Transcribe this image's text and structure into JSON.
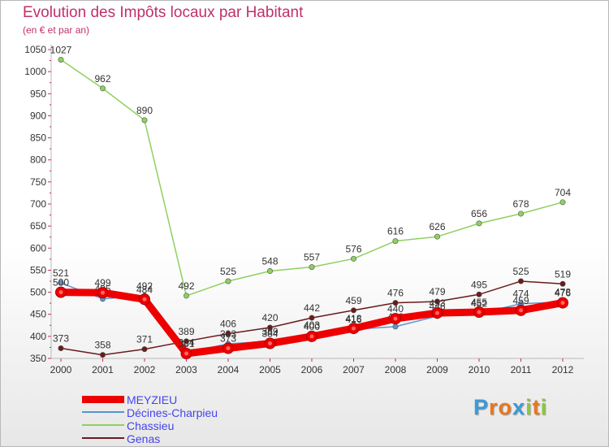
{
  "chart_data": {
    "type": "line",
    "title": "Evolution des Impôts locaux par Habitant",
    "subtitle": "(en € et par an)",
    "xlabel": "",
    "ylabel": "",
    "ylim": [
      350,
      1050
    ],
    "yticks": [
      350,
      400,
      450,
      500,
      550,
      600,
      650,
      700,
      750,
      800,
      850,
      900,
      950,
      1000,
      1050
    ],
    "x": [
      "2000",
      "2001",
      "2002",
      "2003",
      "2004",
      "2005",
      "2006",
      "2007",
      "2008",
      "2009",
      "2010",
      "2011",
      "2012"
    ],
    "grid": false,
    "series": [
      {
        "name": "Genas",
        "color": "#6b1a1a",
        "width": 1.5,
        "values": [
          373,
          358,
          371,
          389,
          406,
          420,
          442,
          459,
          476,
          479,
          495,
          525,
          519
        ],
        "labels": [
          "373",
          "358",
          "371",
          "389",
          "406",
          "420",
          "442",
          "459",
          "476",
          "479",
          "495",
          "525",
          "519"
        ]
      },
      {
        "name": "Chassieu",
        "color": "#8fd060",
        "width": 1.5,
        "values": [
          1027,
          962,
          890,
          492,
          525,
          548,
          557,
          576,
          616,
          626,
          656,
          678,
          704
        ],
        "labels": [
          "1027",
          "962",
          "890",
          "492",
          "525",
          "548",
          "557",
          "576",
          "616",
          "626",
          "656",
          "678",
          "704"
        ]
      },
      {
        "name": "Décines-Charpieu",
        "color": "#5c93cd",
        "width": 1.5,
        "values": [
          521,
          485,
          492,
          364,
          383,
          389,
          403,
          416,
          422,
          446,
          452,
          474,
          478
        ],
        "labels": [
          "521",
          "485",
          "492",
          "364",
          "383",
          "389",
          "403",
          "416",
          "422",
          "446",
          "452",
          "474",
          "478"
        ]
      },
      {
        "name": "MEYZIEU",
        "color": "#ee0000",
        "width": 9,
        "values": [
          500,
          499,
          484,
          361,
          373,
          384,
          400,
          418,
          440,
          453,
          455,
          459,
          476
        ],
        "labels": [
          "500",
          "499",
          "484",
          "361",
          "373",
          "384",
          "400",
          "418",
          "440",
          "453",
          "455",
          "459",
          "476"
        ]
      }
    ],
    "legend": [
      "MEYZIEU",
      "Décines-Charpieu",
      "Chassieu",
      "Genas"
    ],
    "legend_position": "bottom-left"
  },
  "legend_items": [
    {
      "label": "MEYZIEU",
      "color": "#ee0000",
      "thickness": 9
    },
    {
      "label": "Décines-Charpieu",
      "color": "#5c93cd",
      "thickness": 2
    },
    {
      "label": "Chassieu",
      "color": "#8fd060",
      "thickness": 2
    },
    {
      "label": "Genas",
      "color": "#6b1a1a",
      "thickness": 2
    }
  ],
  "brand": {
    "letters": [
      "P",
      "r",
      "o",
      "x",
      "i",
      "t",
      "i"
    ],
    "colors": [
      "#3a9ad9",
      "#e87722",
      "#e87722",
      "#3a9ad9",
      "#8cc63f",
      "#e87722",
      "#8cc63f"
    ]
  }
}
